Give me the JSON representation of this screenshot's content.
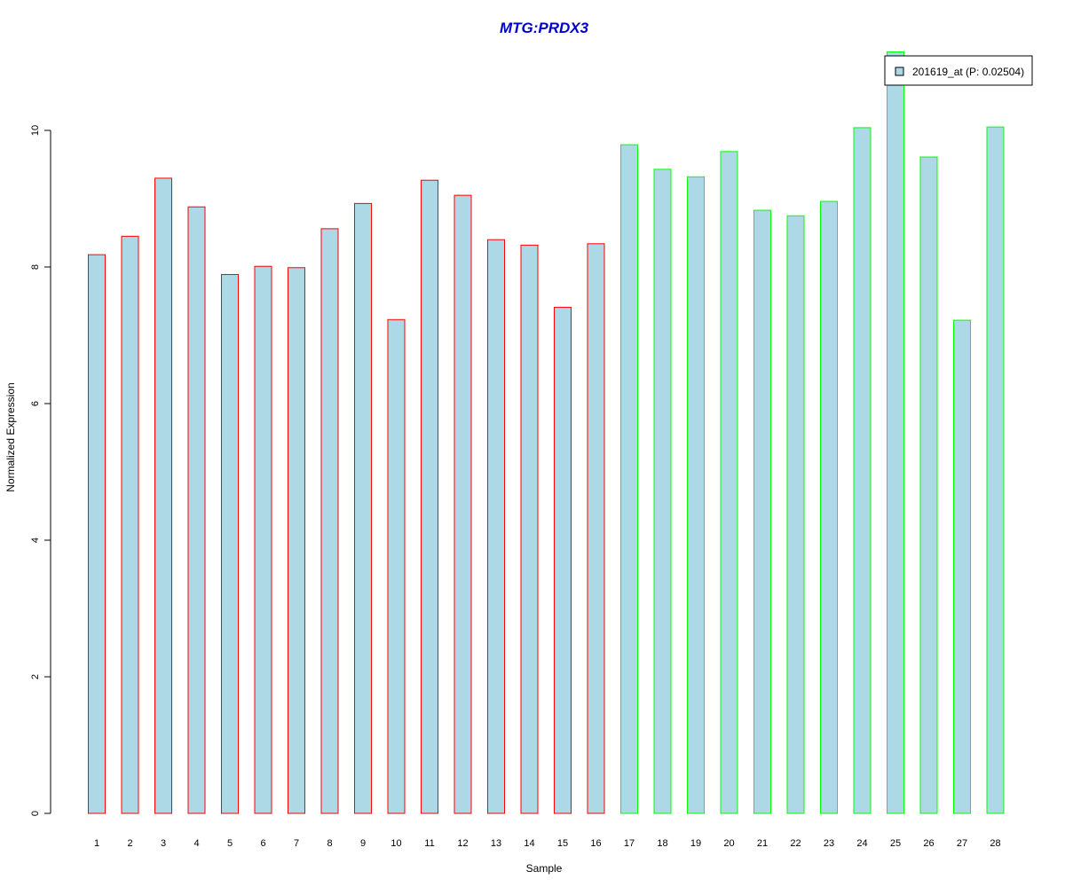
{
  "chart_data": {
    "type": "bar",
    "title": "MTG:PRDX3",
    "xlabel": "Sample",
    "ylabel": "Normalized Expression",
    "ylim": [
      0,
      11.5
    ],
    "yticks": [
      0,
      2,
      4,
      6,
      8,
      10
    ],
    "grid": false,
    "legend_position": "top-right",
    "categories": [
      "1",
      "2",
      "3",
      "4",
      "5",
      "6",
      "7",
      "8",
      "9",
      "10",
      "11",
      "12",
      "13",
      "14",
      "15",
      "16",
      "17",
      "18",
      "19",
      "20",
      "21",
      "22",
      "23",
      "24",
      "25",
      "26",
      "27",
      "28"
    ],
    "series": [
      {
        "name": "201619_at (P: 0.02504)",
        "values": [
          8.18,
          8.45,
          9.3,
          8.88,
          7.89,
          8.01,
          7.99,
          8.56,
          8.93,
          7.23,
          9.27,
          9.05,
          8.4,
          8.32,
          7.41,
          8.34,
          9.79,
          9.43,
          9.32,
          9.69,
          8.83,
          8.75,
          8.96,
          10.04,
          11.15,
          9.61,
          7.22,
          10.05
        ]
      }
    ],
    "group_borders": [
      "#ff0000",
      "#ff0000",
      "#ff0000",
      "#ff0000",
      "#ff0000",
      "#ff0000",
      "#ff0000",
      "#ff0000",
      "#ff0000",
      "#ff0000",
      "#ff0000",
      "#ff0000",
      "#ff0000",
      "#ff0000",
      "#ff0000",
      "#ff0000",
      "#00ff00",
      "#00ff00",
      "#00ff00",
      "#00ff00",
      "#00ff00",
      "#00ff00",
      "#00ff00",
      "#00ff00",
      "#00ff00",
      "#00ff00",
      "#00ff00",
      "#00ff00"
    ]
  },
  "colors": {
    "bar_fill": "#add8e6",
    "title": "#0000cd",
    "axis": "#000000"
  }
}
